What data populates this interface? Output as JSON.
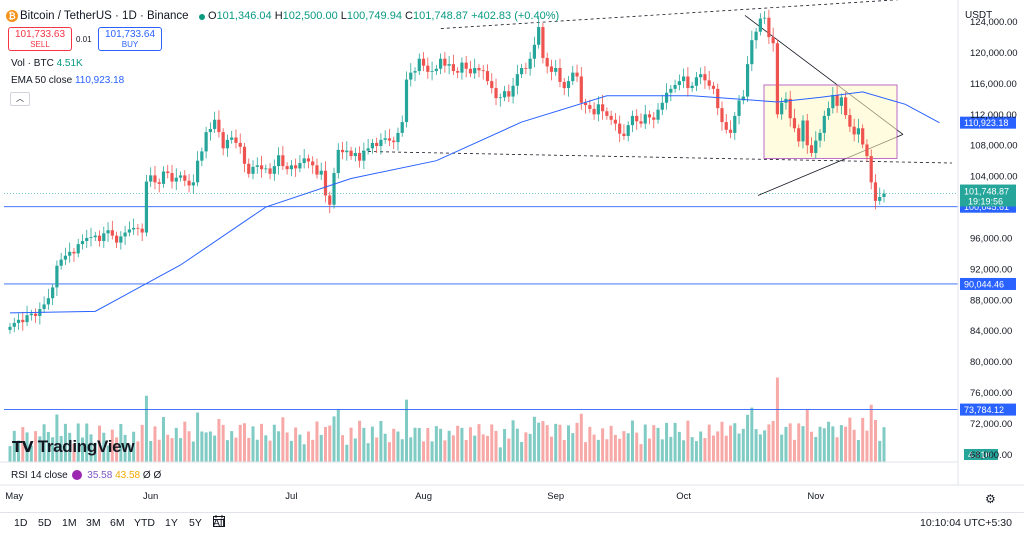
{
  "header": {
    "symbol_line": "Bitcoin / TetherUS · 1D · Binance",
    "ohlc": {
      "o_label": "O",
      "o": "101,346.04",
      "h_label": "H",
      "h": "102,500.00",
      "l_label": "L",
      "l": "100,749.94",
      "c_label": "C",
      "c": "101,748.87",
      "change": "+402.83 (+0.40%)"
    },
    "sell_price": "101,733.63",
    "sell_label": "SELL",
    "buy_price": "101,733.64",
    "buy_label": "BUY",
    "spread": "0.01",
    "volume_label": "Vol · BTC",
    "volume_value": "4.51K",
    "ema_label": "EMA 50 close",
    "ema_value": "110,923.18",
    "collapse_icon": "chevron-up-icon",
    "currency": "USDT"
  },
  "rsi": {
    "label": "RSI 14 close",
    "value1": "35.58",
    "value2": "43.58",
    "value3": "Ø",
    "value4": "Ø"
  },
  "logo_text": "TradingView",
  "bottom": {
    "ranges": [
      "1D",
      "5D",
      "1M",
      "3M",
      "6M",
      "YTD",
      "1Y",
      "5Y",
      "All"
    ],
    "clock": "10:10:04 UTC+5:30"
  },
  "colors": {
    "up": "#26a69a",
    "down": "#ef5350",
    "ema": "#2962ff",
    "hline": "#2962ff",
    "volume_up": "#80cbc4",
    "volume_down": "#f7a9a7"
  },
  "chart_data": {
    "type": "candlestick",
    "title": "Bitcoin / TetherUS · 1D · Binance",
    "x_months": [
      "May",
      "Jun",
      "Jul",
      "Aug",
      "Sep",
      "Oct",
      "Nov"
    ],
    "y_ticks": [
      "124,000.00",
      "120,000.00",
      "116,000.00",
      "112,000.00",
      "108,000.00",
      "104,000.00",
      "96,000.00",
      "92,000.00",
      "88,000.00",
      "84,000.00",
      "80,000.00",
      "76,000.00",
      "72,000.00",
      "68,000.00"
    ],
    "y_range": [
      67000,
      126800
    ],
    "last_price": "101,748.87",
    "countdown": "19:19:56",
    "ema_label_value": "110,923.18",
    "price_levels": [
      {
        "value": 100045.61,
        "label": "100,045.61"
      },
      {
        "value": 90044.46,
        "label": "90,044.46"
      },
      {
        "value": 73784.12,
        "label": "73,784.12"
      }
    ],
    "volume_label": "4.51K",
    "closes": [
      84500,
      85000,
      85400,
      85100,
      86000,
      86200,
      85900,
      86800,
      87400,
      88200,
      89600,
      92400,
      93200,
      93700,
      94200,
      94000,
      95200,
      95600,
      96000,
      96100,
      96300,
      95600,
      96600,
      97000,
      96300,
      95400,
      96200,
      96700,
      97100,
      97300,
      97200,
      96700,
      103300,
      104100,
      103200,
      103000,
      104600,
      104400,
      103300,
      103800,
      104100,
      103400,
      102800,
      103200,
      106000,
      107200,
      109700,
      110100,
      111300,
      109700,
      107600,
      108700,
      109000,
      108300,
      107800,
      105600,
      104300,
      105200,
      105400,
      104900,
      105000,
      104300,
      105300,
      106700,
      105300,
      104900,
      105400,
      105000,
      105700,
      106300,
      105900,
      105400,
      104200,
      104700,
      101500,
      100300,
      104400,
      107400,
      107100,
      107300,
      106600,
      107000,
      106000,
      107300,
      107600,
      108300,
      107900,
      108700,
      108900,
      108600,
      108400,
      109600,
      111000,
      116500,
      117400,
      117600,
      119200,
      118300,
      117500,
      117600,
      117900,
      119200,
      118300,
      118500,
      117600,
      117400,
      118700,
      117900,
      117300,
      118000,
      117700,
      117600,
      116300,
      115400,
      114100,
      114200,
      115000,
      114300,
      115700,
      117200,
      118000,
      117900,
      119200,
      121000,
      123300,
      119300,
      118200,
      117500,
      118000,
      116200,
      115400,
      116300,
      117400,
      116900,
      113500,
      113200,
      112700,
      112000,
      113300,
      112400,
      111800,
      111300,
      110800,
      109500,
      109200,
      110600,
      111800,
      111100,
      110800,
      112000,
      111600,
      111300,
      112600,
      113500,
      114800,
      115300,
      115800,
      116300,
      116900,
      115400,
      115700,
      116800,
      117200,
      116400,
      115700,
      115300,
      112800,
      111000,
      110000,
      109600,
      111800,
      113800,
      114300,
      118500,
      121600,
      122700,
      124400,
      124500,
      122000,
      121200,
      112000,
      113500,
      114000,
      111500,
      110200,
      108500,
      111200,
      108000,
      107000,
      108600,
      109600,
      111800,
      112800,
      114500,
      113100,
      114200,
      111900,
      110400,
      109400,
      110200,
      108100,
      106600,
      103200,
      100800,
      101300,
      101749
    ],
    "ema50": [
      {
        "i": 0,
        "v": 86300
      },
      {
        "i": 20,
        "v": 86500
      },
      {
        "i": 40,
        "v": 92500
      },
      {
        "i": 60,
        "v": 100000
      },
      {
        "i": 80,
        "v": 103700
      },
      {
        "i": 100,
        "v": 106000
      },
      {
        "i": 120,
        "v": 111000
      },
      {
        "i": 140,
        "v": 114400
      },
      {
        "i": 160,
        "v": 114400
      },
      {
        "i": 180,
        "v": 113600
      },
      {
        "i": 190,
        "v": 114200
      },
      {
        "i": 200,
        "v": 114900
      },
      {
        "i": 210,
        "v": 113300
      },
      {
        "i": 218,
        "v": 110923
      }
    ]
  }
}
